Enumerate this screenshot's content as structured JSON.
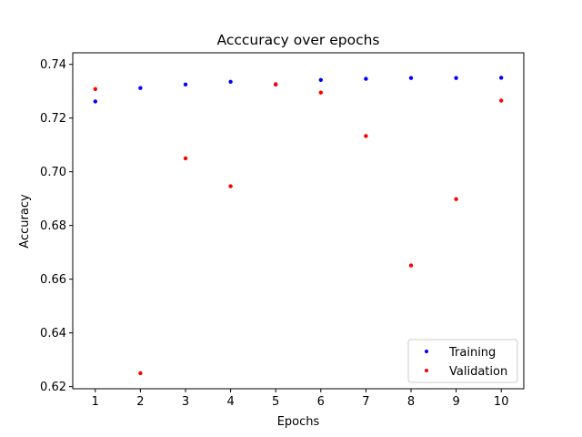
{
  "chart_data": {
    "type": "scatter",
    "title": "Acccuracy over epochs",
    "xlabel": "Epochs",
    "ylabel": "Accuracy",
    "x": [
      1,
      2,
      3,
      4,
      5,
      6,
      7,
      8,
      9,
      10
    ],
    "xticks": [
      "1",
      "2",
      "3",
      "4",
      "5",
      "6",
      "7",
      "8",
      "9",
      "10"
    ],
    "yticks": [
      "0.62",
      "0.64",
      "0.66",
      "0.68",
      "0.70",
      "0.72",
      "0.74"
    ],
    "xlim": [
      0.5,
      10.5
    ],
    "ylim": [
      0.6192,
      0.7443
    ],
    "grid": false,
    "legend_position": "lower-right",
    "series": [
      {
        "name": "Training",
        "color": "#0000ff",
        "values": [
          0.7262,
          0.7312,
          0.7325,
          0.7335,
          0.7325,
          0.7342,
          0.7346,
          0.7349,
          0.7349,
          0.735
        ]
      },
      {
        "name": "Validation",
        "color": "#ff0000",
        "values": [
          0.7308,
          0.625,
          0.705,
          0.6946,
          0.7326,
          0.7295,
          0.7133,
          0.6651,
          0.6898,
          0.7265
        ]
      }
    ]
  }
}
